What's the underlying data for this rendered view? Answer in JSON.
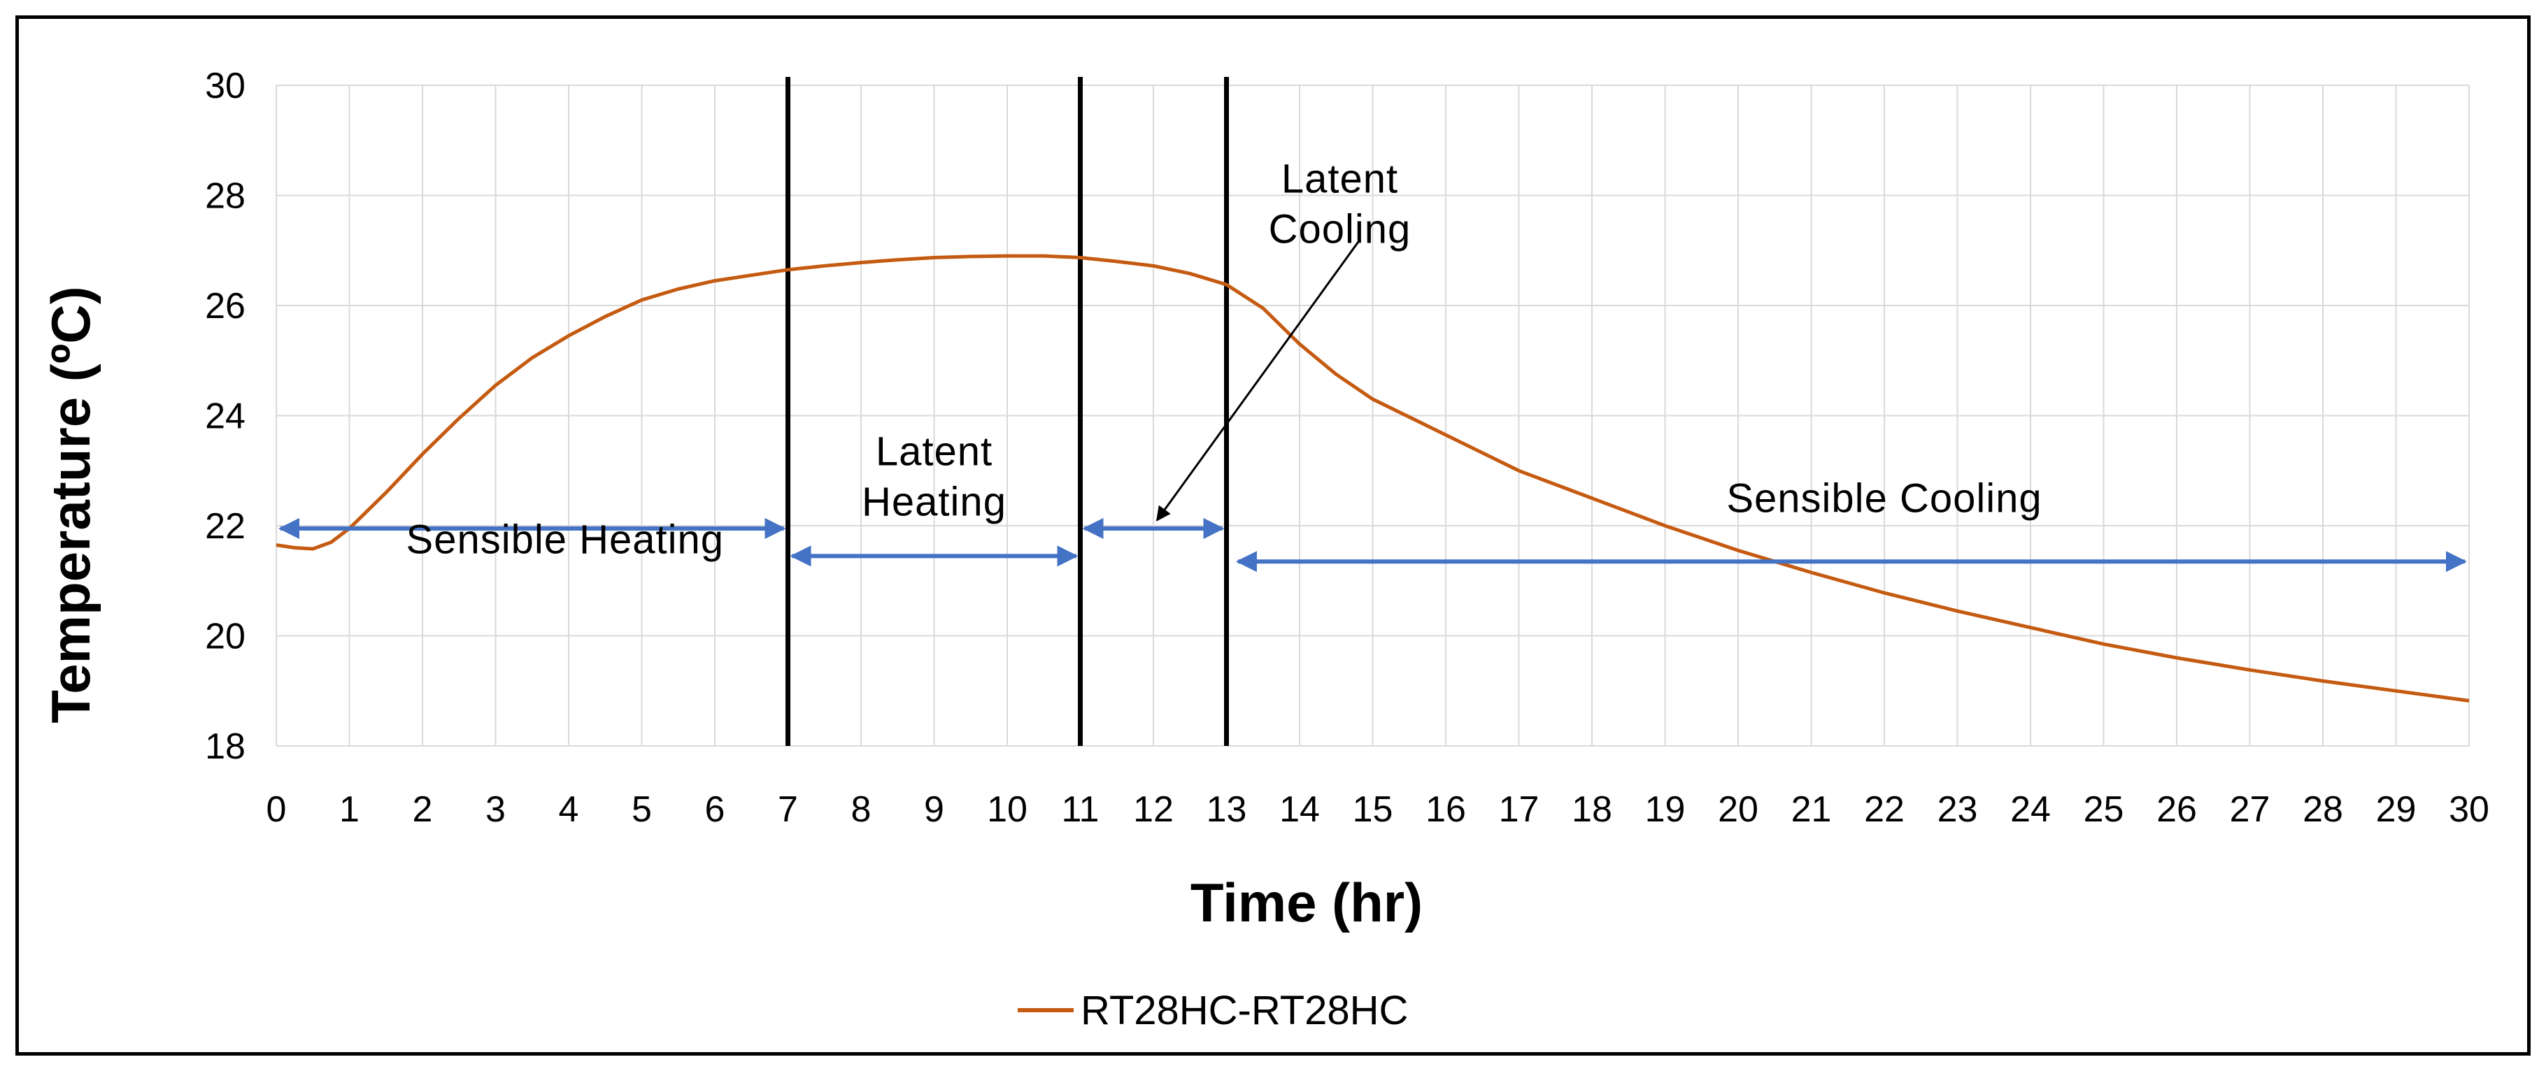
{
  "chart_data": {
    "type": "line",
    "title": "",
    "xlabel": "Time (hr)",
    "ylabel": "Temperature (ºC)",
    "xlim": [
      0,
      30
    ],
    "ylim": [
      18,
      30
    ],
    "x_ticks": [
      0,
      1,
      2,
      3,
      4,
      5,
      6,
      7,
      8,
      9,
      10,
      11,
      12,
      13,
      14,
      15,
      16,
      17,
      18,
      19,
      20,
      21,
      22,
      23,
      24,
      25,
      26,
      27,
      28,
      29,
      30
    ],
    "y_ticks": [
      18,
      20,
      22,
      24,
      26,
      28,
      30
    ],
    "grid": true,
    "series": [
      {
        "name": "RT28HC-RT28HC",
        "color": "#C55A11",
        "points": [
          [
            0,
            21.65
          ],
          [
            0.25,
            21.6
          ],
          [
            0.5,
            21.58
          ],
          [
            0.75,
            21.7
          ],
          [
            1,
            21.95
          ],
          [
            1.5,
            22.6
          ],
          [
            2,
            23.3
          ],
          [
            2.5,
            23.95
          ],
          [
            3,
            24.55
          ],
          [
            3.5,
            25.05
          ],
          [
            4,
            25.45
          ],
          [
            4.5,
            25.8
          ],
          [
            5,
            26.1
          ],
          [
            5.5,
            26.3
          ],
          [
            6,
            26.45
          ],
          [
            6.5,
            26.55
          ],
          [
            7,
            26.65
          ],
          [
            7.5,
            26.72
          ],
          [
            8,
            26.78
          ],
          [
            8.5,
            26.83
          ],
          [
            9,
            26.87
          ],
          [
            9.5,
            26.89
          ],
          [
            10,
            26.9
          ],
          [
            10.5,
            26.9
          ],
          [
            11,
            26.87
          ],
          [
            11.5,
            26.8
          ],
          [
            12,
            26.72
          ],
          [
            12.5,
            26.58
          ],
          [
            13,
            26.38
          ],
          [
            13.5,
            25.95
          ],
          [
            14,
            25.3
          ],
          [
            14.5,
            24.75
          ],
          [
            15,
            24.3
          ],
          [
            16,
            23.65
          ],
          [
            17,
            23.0
          ],
          [
            18,
            22.5
          ],
          [
            19,
            22.0
          ],
          [
            20,
            21.55
          ],
          [
            21,
            21.15
          ],
          [
            22,
            20.78
          ],
          [
            23,
            20.45
          ],
          [
            24,
            20.15
          ],
          [
            25,
            19.85
          ],
          [
            26,
            19.6
          ],
          [
            27,
            19.38
          ],
          [
            28,
            19.18
          ],
          [
            29,
            19.0
          ],
          [
            30,
            18.82
          ]
        ]
      }
    ],
    "phase_boundaries": [
      7,
      11,
      13
    ],
    "annotations": [
      {
        "id": "sensible-heating",
        "lines": [
          "Sensible Heating"
        ],
        "x": 3.95,
        "y": 21.5,
        "arrow_x": [
          0,
          7
        ],
        "arrow_y": 21.95
      },
      {
        "id": "latent-heating",
        "lines": [
          "Latent",
          "Heating"
        ],
        "x": 9.0,
        "y": 23.1,
        "arrow_x": [
          7,
          11
        ],
        "arrow_y": 21.45
      },
      {
        "id": "latent-cooling",
        "lines": [
          "Latent",
          "Cooling"
        ],
        "x": 14.55,
        "y": 28.05,
        "arrow_x": [
          11,
          13
        ],
        "arrow_y": 21.95
      },
      {
        "id": "sensible-cooling",
        "lines": [
          "Sensible Cooling"
        ],
        "x": 22.0,
        "y": 22.25,
        "arrow_x": [
          13.1,
          30
        ],
        "arrow_y": 21.35
      }
    ],
    "pointer_arrow": {
      "from": [
        14.8,
        27.15
      ],
      "to": [
        12.05,
        22.1
      ]
    },
    "legend": {
      "position": "bottom-center",
      "label": "RT28HC-RT28HC"
    }
  },
  "colors": {
    "line": "#C55A11",
    "arrow": "#4472C4",
    "grid": "#D9D9D9",
    "divider": "#000000"
  }
}
